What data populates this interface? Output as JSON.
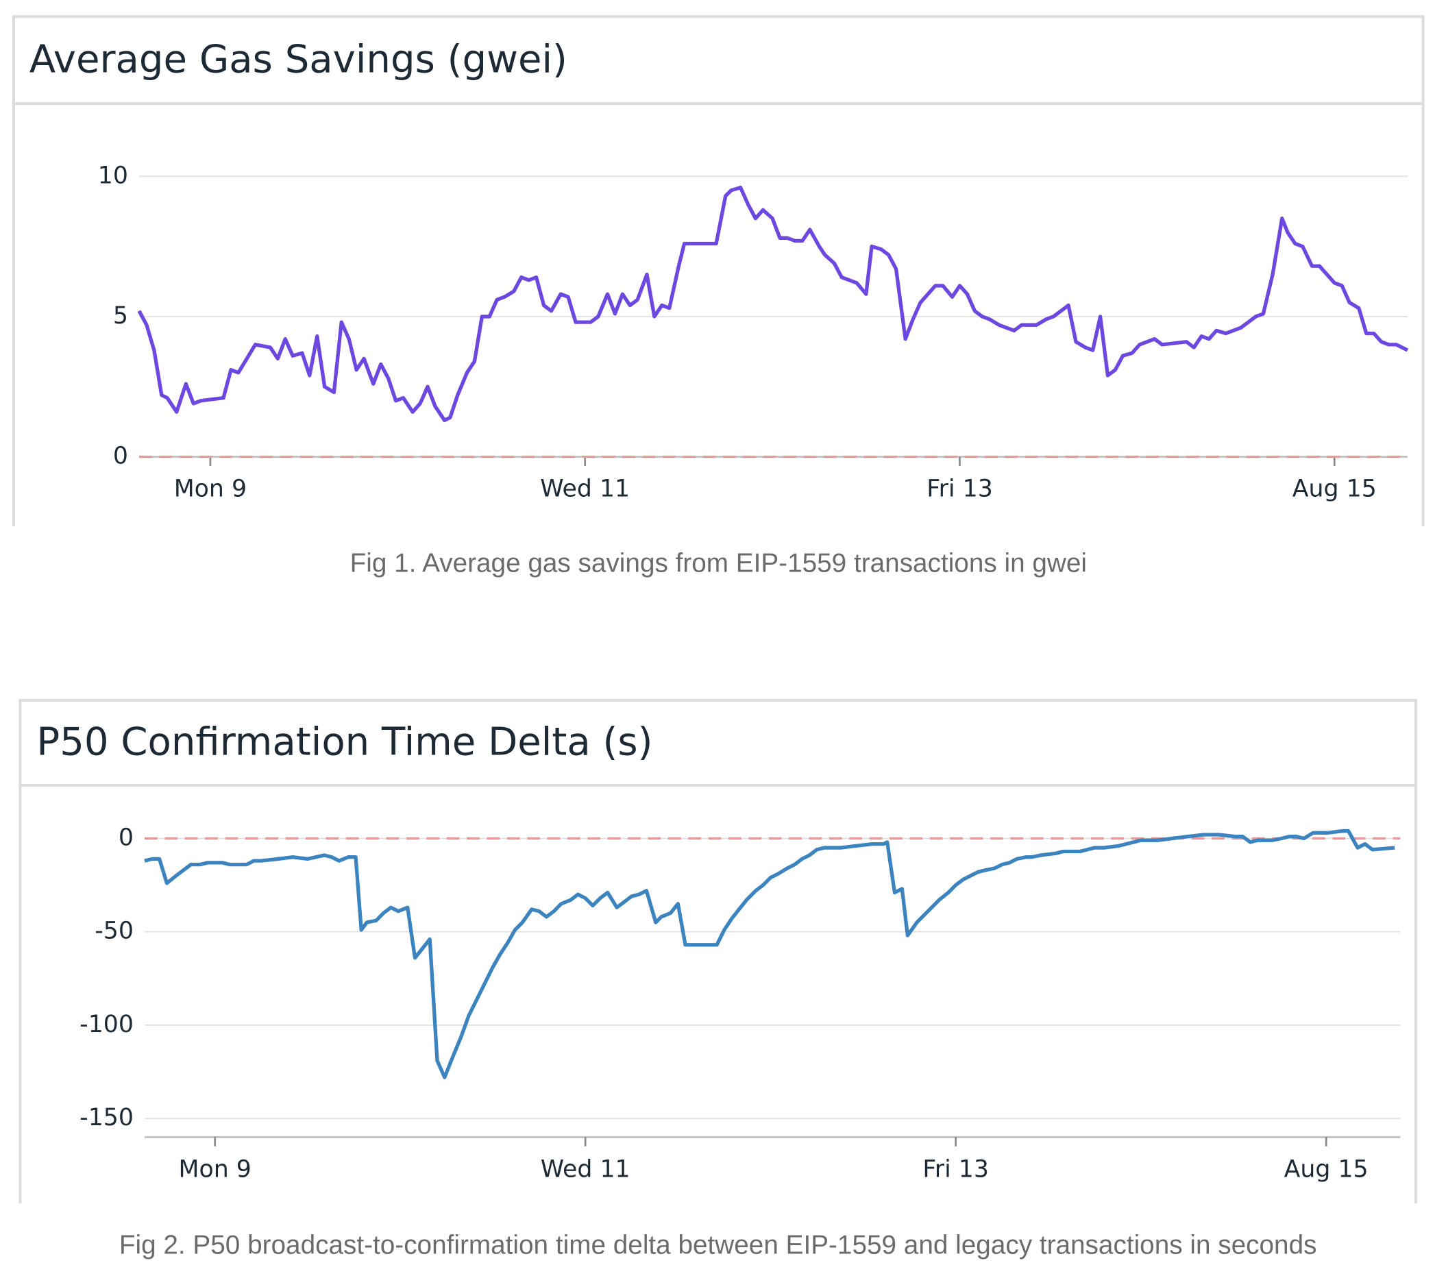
{
  "chart_data": [
    {
      "type": "line",
      "title": "Average Gas Savings (gwei)",
      "caption": "Fig 1. Average gas savings from EIP-1559 transactions in gwei",
      "color": "#6c47e0",
      "x": [
        8.62,
        8.66,
        8.7,
        8.74,
        8.77,
        8.82,
        8.87,
        8.91,
        8.95,
        9.07,
        9.11,
        9.15,
        9.24,
        9.32,
        9.36,
        9.4,
        9.44,
        9.49,
        9.53,
        9.57,
        9.61,
        9.66,
        9.7,
        9.74,
        9.78,
        9.82,
        9.87,
        9.91,
        9.95,
        9.99,
        10.03,
        10.08,
        10.12,
        10.16,
        10.2,
        10.25,
        10.28,
        10.32,
        10.37,
        10.41,
        10.45,
        10.49,
        10.53,
        10.57,
        10.62,
        10.66,
        10.7,
        10.74,
        10.78,
        10.82,
        10.87,
        10.91,
        10.95,
        11.03,
        11.07,
        11.12,
        11.16,
        11.2,
        11.24,
        11.28,
        11.33,
        11.37,
        11.41,
        11.45,
        11.5,
        11.53,
        11.7,
        11.75,
        11.78,
        11.83,
        11.87,
        11.91,
        11.95,
        12.0,
        12.04,
        12.08,
        12.12,
        12.16,
        12.2,
        12.25,
        12.28,
        12.33,
        12.37,
        12.41,
        12.45,
        12.5,
        12.53,
        12.58,
        12.62,
        12.66,
        12.71,
        12.75,
        12.79,
        12.83,
        12.87,
        12.91,
        12.96,
        13.0,
        13.04,
        13.08,
        13.12,
        13.16,
        13.21,
        13.29,
        13.33,
        13.41,
        13.46,
        13.5,
        13.54,
        13.58,
        13.62,
        13.67,
        13.71,
        13.75,
        13.79,
        13.83,
        13.87,
        13.92,
        13.96,
        14.0,
        14.04,
        14.08,
        14.21,
        14.25,
        14.29,
        14.33,
        14.37,
        14.42,
        14.46,
        14.5,
        14.54,
        14.58,
        14.62,
        14.67,
        14.72,
        14.75,
        14.79,
        14.83,
        14.88,
        14.92,
        14.96,
        15.0,
        15.04,
        15.08,
        15.13,
        15.17,
        15.21,
        15.25,
        15.29,
        15.33,
        15.39
      ],
      "values": [
        5.2,
        4.7,
        3.8,
        2.2,
        2.1,
        1.6,
        2.6,
        1.9,
        2.0,
        2.1,
        3.1,
        3.0,
        4.0,
        3.9,
        3.5,
        4.2,
        3.6,
        3.7,
        2.9,
        4.3,
        2.5,
        2.3,
        4.8,
        4.2,
        3.1,
        3.5,
        2.6,
        3.3,
        2.8,
        2.0,
        2.1,
        1.6,
        1.9,
        2.5,
        1.8,
        1.3,
        1.4,
        2.2,
        3.0,
        3.4,
        5.0,
        5.0,
        5.6,
        5.7,
        5.9,
        6.4,
        6.3,
        6.4,
        5.4,
        5.2,
        5.8,
        5.7,
        4.8,
        4.8,
        5.0,
        5.8,
        5.1,
        5.8,
        5.4,
        5.6,
        6.5,
        5.0,
        5.4,
        5.3,
        6.8,
        7.6,
        7.6,
        9.3,
        9.5,
        9.6,
        9.0,
        8.5,
        8.8,
        8.5,
        7.8,
        7.8,
        7.7,
        7.7,
        8.1,
        7.5,
        7.2,
        6.9,
        6.4,
        6.3,
        6.2,
        5.8,
        7.5,
        7.4,
        7.2,
        6.7,
        4.2,
        4.9,
        5.5,
        5.8,
        6.1,
        6.1,
        5.7,
        6.1,
        5.8,
        5.2,
        5.0,
        4.9,
        4.7,
        4.5,
        4.7,
        4.7,
        4.9,
        5.0,
        5.2,
        5.4,
        4.1,
        3.9,
        3.8,
        5.0,
        2.9,
        3.1,
        3.6,
        3.7,
        4.0,
        4.1,
        4.2,
        4.0,
        4.1,
        3.9,
        4.3,
        4.2,
        4.5,
        4.4,
        4.5,
        4.6,
        4.8,
        5.0,
        5.1,
        6.5,
        8.5,
        8.0,
        7.6,
        7.5,
        6.8,
        6.8,
        6.5,
        6.2,
        6.1,
        5.5,
        5.3,
        4.4,
        4.4,
        4.1,
        4.0,
        4.0,
        3.8
      ],
      "xlim": [
        8.62,
        15.39
      ],
      "ylim": [
        0,
        10.8
      ],
      "yticks": [
        0,
        5,
        10
      ],
      "xticks": [
        {
          "value": 9,
          "label": "Mon 9"
        },
        {
          "value": 11,
          "label": "Wed 11"
        },
        {
          "value": 13,
          "label": "Fri 13"
        },
        {
          "value": 15,
          "label": "Aug 15"
        }
      ],
      "grid": true,
      "reference_line": {
        "value": 0,
        "color": "#e59b9b"
      }
    },
    {
      "type": "line",
      "title": "P50 Confirmation Time Delta (s)",
      "caption": "Fig 2. P50 broadcast-to-confirmation time delta between EIP-1559 and legacy transactions in seconds",
      "color": "#3c84bf",
      "x": [
        8.62,
        8.66,
        8.7,
        8.74,
        8.79,
        8.83,
        8.87,
        8.92,
        8.96,
        9.04,
        9.08,
        9.12,
        9.17,
        9.21,
        9.25,
        9.34,
        9.42,
        9.5,
        9.59,
        9.63,
        9.67,
        9.72,
        9.76,
        9.79,
        9.82,
        9.87,
        9.91,
        9.95,
        9.99,
        10.04,
        10.08,
        10.12,
        10.16,
        10.2,
        10.24,
        10.28,
        10.33,
        10.37,
        10.41,
        10.46,
        10.5,
        10.54,
        10.58,
        10.62,
        10.66,
        10.71,
        10.75,
        10.79,
        10.83,
        10.87,
        10.92,
        10.96,
        11.0,
        11.04,
        11.08,
        11.12,
        11.17,
        11.21,
        11.25,
        11.29,
        11.33,
        11.38,
        11.41,
        11.46,
        11.5,
        11.54,
        11.71,
        11.75,
        11.79,
        11.83,
        11.87,
        11.92,
        11.96,
        12.0,
        12.04,
        12.09,
        12.13,
        12.17,
        12.21,
        12.25,
        12.29,
        12.38,
        12.46,
        12.55,
        12.61,
        12.63,
        12.67,
        12.71,
        12.74,
        12.79,
        12.83,
        12.87,
        12.91,
        12.96,
        13.0,
        13.04,
        13.08,
        13.12,
        13.16,
        13.21,
        13.25,
        13.29,
        13.33,
        13.38,
        13.41,
        13.46,
        13.54,
        13.58,
        13.67,
        13.71,
        13.75,
        13.8,
        13.88,
        13.92,
        13.96,
        14.0,
        14.09,
        14.17,
        14.25,
        14.34,
        14.42,
        14.51,
        14.55,
        14.59,
        14.63,
        14.67,
        14.71,
        14.76,
        14.8,
        14.84,
        14.88,
        14.93,
        15.01,
        15.09,
        15.12,
        15.17,
        15.21,
        15.25,
        15.37
      ],
      "values": [
        -12,
        -11,
        -11,
        -24,
        -20,
        -17,
        -14,
        -14,
        -13,
        -13,
        -14,
        -14,
        -14,
        -12,
        -12,
        -11,
        -10,
        -11,
        -9,
        -10,
        -12,
        -10,
        -10,
        -49,
        -45,
        -44,
        -40,
        -37,
        -39,
        -37,
        -64,
        -59,
        -54,
        -119,
        -128,
        -118,
        -106,
        -95,
        -87,
        -77,
        -69,
        -62,
        -56,
        -49,
        -45,
        -38,
        -39,
        -42,
        -39,
        -35,
        -33,
        -30,
        -32,
        -36,
        -32,
        -29,
        -37,
        -34,
        -31,
        -30,
        -28,
        -45,
        -42,
        -40,
        -35,
        -57,
        -57,
        -49,
        -43,
        -38,
        -33,
        -28,
        -25,
        -21,
        -19,
        -16,
        -14,
        -11,
        -9,
        -6,
        -5,
        -5,
        -4,
        -3,
        -3,
        -2,
        -29,
        -27,
        -52,
        -45,
        -41,
        -37,
        -33,
        -29,
        -25,
        -22,
        -20,
        -18,
        -17,
        -16,
        -14,
        -13,
        -11,
        -10,
        -10,
        -9,
        -8,
        -7,
        -7,
        -6,
        -5,
        -5,
        -4,
        -3,
        -2,
        -1,
        -1,
        0,
        1,
        2,
        2,
        1,
        1,
        -2,
        -1,
        -1,
        -1,
        0,
        1,
        1,
        0,
        3,
        3,
        4,
        4,
        -5,
        -3,
        -6,
        -5
      ],
      "xlim": [
        8.62,
        15.4
      ],
      "ylim": [
        -160,
        12
      ],
      "yticks": [
        -150,
        -100,
        -50,
        0
      ],
      "xticks": [
        {
          "value": 9,
          "label": "Mon 9"
        },
        {
          "value": 11,
          "label": "Wed 11"
        },
        {
          "value": 13,
          "label": "Fri 13"
        },
        {
          "value": 15,
          "label": "Aug 15"
        }
      ],
      "grid": true,
      "reference_line": {
        "value": 0,
        "color": "#e59b9b"
      }
    }
  ]
}
